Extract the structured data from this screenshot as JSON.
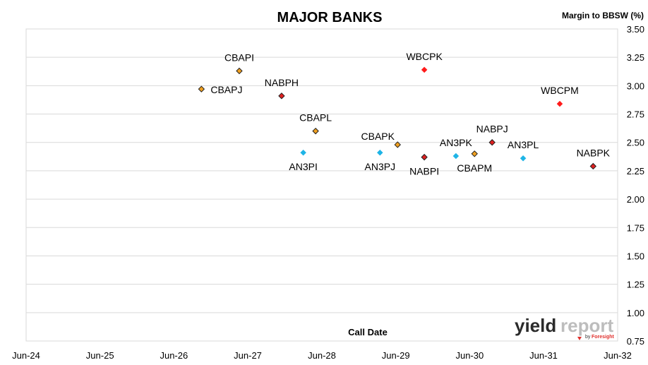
{
  "chart_data": {
    "type": "scatter",
    "title": "MAJOR BANKS",
    "xlabel": "Call Date",
    "ylabel": "Margin to BBSW (%)",
    "xlim": [
      "2024-06-01",
      "2032-06-01"
    ],
    "ylim": [
      0.75,
      3.5
    ],
    "y_ticks": [
      "3.50",
      "3.25",
      "3.00",
      "2.75",
      "2.50",
      "2.25",
      "2.00",
      "1.75",
      "1.50",
      "1.25",
      "1.00",
      "0.75"
    ],
    "y_tick_values": [
      3.5,
      3.25,
      3.0,
      2.75,
      2.5,
      2.25,
      2.0,
      1.75,
      1.5,
      1.25,
      1.0,
      0.75
    ],
    "x_ticks": [
      "Jun-24",
      "Jun-25",
      "Jun-26",
      "Jun-27",
      "Jun-28",
      "Jun-29",
      "Jun-30",
      "Jun-31",
      "Jun-32"
    ],
    "x_tick_values": [
      "2024-06-01",
      "2025-06-01",
      "2026-06-01",
      "2027-06-01",
      "2028-06-01",
      "2029-06-01",
      "2030-06-01",
      "2031-06-01",
      "2032-06-01"
    ],
    "grid": "horizontal",
    "colors": {
      "CBA": "#F0A020",
      "NAB": "#E02020",
      "WBC": "#FF1A1A",
      "ANZ": "#1EB4E6"
    },
    "points": [
      {
        "name": "CBAPJ",
        "x": "2026-10-15",
        "y": 2.97,
        "bank": "CBA",
        "label_pos": "right"
      },
      {
        "name": "CBAPI",
        "x": "2027-04-20",
        "y": 3.13,
        "bank": "CBA",
        "label_pos": "above"
      },
      {
        "name": "NABPH",
        "x": "2027-11-15",
        "y": 2.91,
        "bank": "NAB",
        "label_pos": "above"
      },
      {
        "name": "CBAPL",
        "x": "2028-05-01",
        "y": 2.6,
        "bank": "CBA",
        "label_pos": "above"
      },
      {
        "name": "AN3PI",
        "x": "2028-03-01",
        "y": 2.41,
        "bank": "ANZ",
        "label_pos": "below"
      },
      {
        "name": "AN3PJ",
        "x": "2029-03-15",
        "y": 2.41,
        "bank": "ANZ",
        "label_pos": "below"
      },
      {
        "name": "CBAPK",
        "x": "2029-06-10",
        "y": 2.48,
        "bank": "CBA",
        "label_pos": "above-left"
      },
      {
        "name": "WBCPK",
        "x": "2029-10-20",
        "y": 3.14,
        "bank": "WBC",
        "label_pos": "above"
      },
      {
        "name": "NABPI",
        "x": "2029-10-20",
        "y": 2.37,
        "bank": "NAB",
        "label_pos": "below"
      },
      {
        "name": "AN3PK",
        "x": "2030-03-25",
        "y": 2.38,
        "bank": "ANZ",
        "label_pos": "above"
      },
      {
        "name": "CBAPM",
        "x": "2030-06-25",
        "y": 2.4,
        "bank": "CBA",
        "label_pos": "below"
      },
      {
        "name": "NABPJ",
        "x": "2030-09-20",
        "y": 2.5,
        "bank": "NAB",
        "label_pos": "above"
      },
      {
        "name": "AN3PL",
        "x": "2031-02-20",
        "y": 2.36,
        "bank": "ANZ",
        "label_pos": "above"
      },
      {
        "name": "WBCPM",
        "x": "2031-08-20",
        "y": 2.84,
        "bank": "WBC",
        "label_pos": "above"
      },
      {
        "name": "NABPK",
        "x": "2032-02-01",
        "y": 2.29,
        "bank": "NAB",
        "label_pos": "above"
      }
    ]
  },
  "logo": {
    "part1": "yield",
    "part2": "report",
    "by": "by",
    "brand": "Foresight"
  }
}
